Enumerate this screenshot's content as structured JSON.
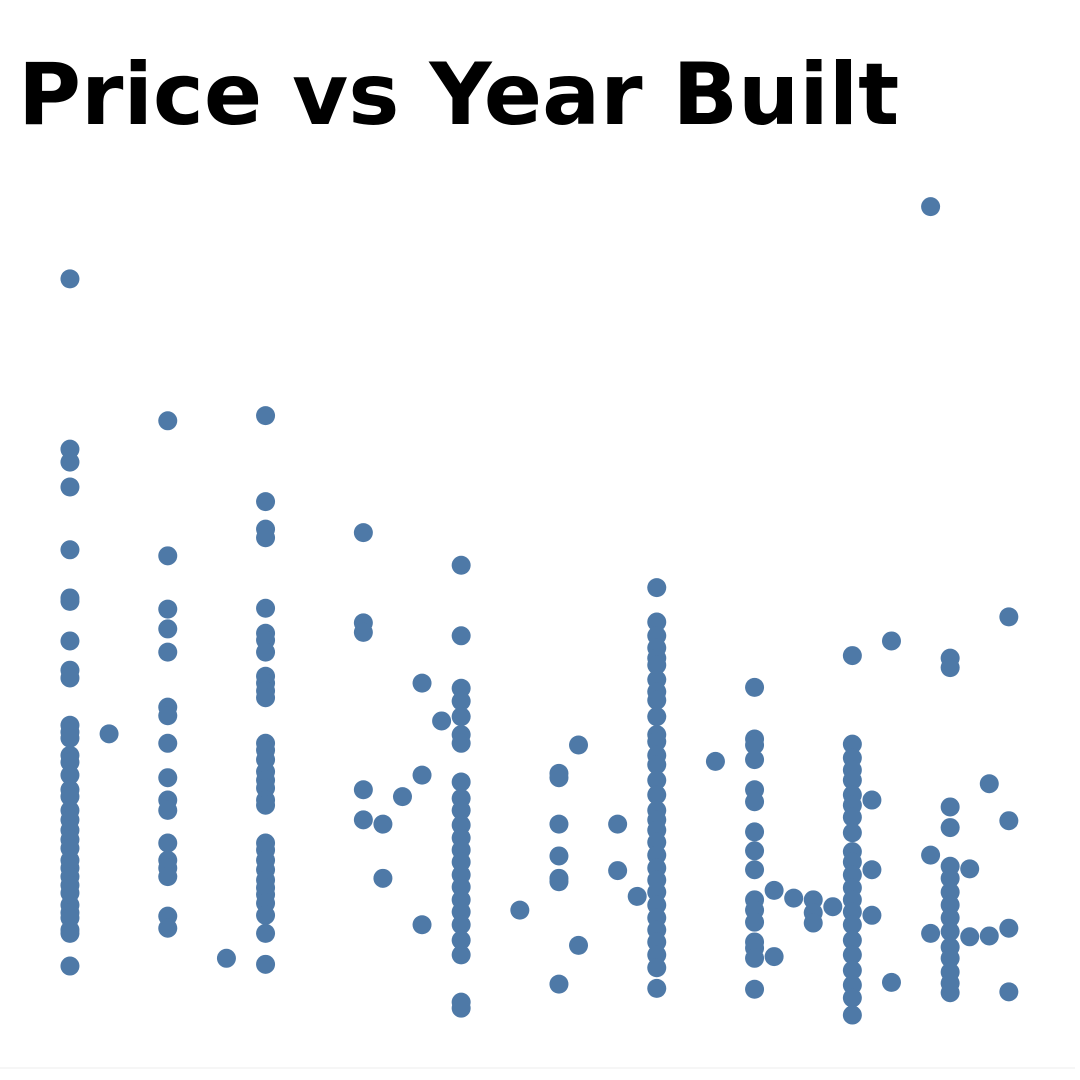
{
  "chart_data": {
    "type": "scatter",
    "title": "Price vs Year Built",
    "color": "#4e79a7",
    "xlim": [
      -3.5,
      51.5
    ],
    "ylim": [
      0,
      100
    ],
    "x": [
      0,
      0,
      0,
      0,
      0,
      0,
      0,
      0,
      0,
      0,
      0,
      0,
      0,
      0,
      0,
      0,
      0,
      0,
      0,
      0,
      0,
      0,
      0,
      0,
      0,
      0,
      0,
      0,
      0,
      0,
      0,
      0,
      0,
      0,
      2,
      5,
      5,
      5,
      5,
      5,
      5,
      5,
      5,
      5,
      5,
      5,
      5,
      5,
      5,
      5,
      5,
      5,
      8,
      10,
      10,
      10,
      10,
      10,
      10,
      10,
      10,
      10,
      10,
      10,
      10,
      10,
      10,
      10,
      10,
      10,
      10,
      10,
      10,
      10,
      10,
      10,
      10,
      10,
      10,
      10,
      10,
      10,
      10,
      10,
      15,
      15,
      15,
      15,
      15,
      16,
      16,
      17,
      18,
      18,
      18,
      19,
      20,
      20,
      20,
      20,
      20,
      20,
      20,
      20,
      20,
      20,
      20,
      20,
      20,
      20,
      20,
      20,
      20,
      20,
      20,
      20,
      20,
      20,
      20,
      23,
      25,
      25,
      25,
      25,
      25,
      25,
      25,
      26,
      26,
      28,
      28,
      29,
      30,
      30,
      30,
      30,
      30,
      30,
      30,
      30,
      30,
      30,
      30,
      30,
      30,
      30,
      30,
      30,
      30,
      30,
      30,
      30,
      30,
      30,
      30,
      30,
      30,
      30,
      30,
      30,
      30,
      30,
      30,
      33,
      35,
      35,
      35,
      35,
      35,
      35,
      35,
      35,
      35,
      35,
      35,
      35,
      35,
      35,
      35,
      35,
      36,
      36,
      37,
      38,
      38,
      38,
      39,
      40,
      40,
      40,
      40,
      40,
      40,
      40,
      40,
      40,
      40,
      40,
      40,
      40,
      40,
      40,
      40,
      40,
      40,
      40,
      40,
      40,
      40,
      41,
      41,
      41,
      42,
      42,
      44,
      44,
      44,
      45,
      45,
      45,
      45,
      45,
      45,
      45,
      45,
      45,
      45,
      45,
      45,
      45,
      45,
      45,
      46,
      46,
      47,
      47,
      48,
      48,
      48,
      48
    ],
    "y": [
      88.5,
      68.7,
      67.2,
      64.3,
      57.0,
      51.4,
      51.0,
      46.4,
      43.0,
      42.1,
      36.6,
      35.8,
      35.1,
      33.1,
      32.3,
      30.8,
      29.1,
      28.3,
      26.7,
      25.6,
      24.4,
      23.3,
      22.3,
      20.9,
      20.0,
      19.0,
      18.0,
      17.1,
      15.7,
      14.8,
      14.2,
      12.8,
      12.4,
      8.6,
      35.6,
      72.0,
      56.3,
      50.1,
      47.8,
      45.1,
      38.7,
      37.7,
      34.5,
      30.5,
      27.9,
      26.7,
      22.9,
      20.9,
      20.0,
      19.0,
      14.4,
      13.0,
      9.5,
      72.6,
      62.6,
      59.4,
      58.4,
      50.2,
      47.3,
      46.5,
      45.1,
      42.3,
      41.5,
      40.6,
      39.8,
      34.5,
      33.7,
      32.6,
      31.2,
      30.2,
      29.3,
      27.9,
      27.3,
      22.9,
      22.1,
      20.9,
      19.8,
      18.6,
      17.7,
      16.9,
      15.9,
      14.5,
      12.4,
      8.8,
      59.0,
      48.5,
      47.4,
      29.1,
      25.6,
      25.1,
      18.8,
      28.3,
      41.5,
      30.8,
      13.4,
      37.1,
      55.2,
      47.0,
      40.9,
      39.4,
      37.6,
      35.5,
      34.5,
      30.0,
      28.1,
      26.7,
      25.0,
      23.5,
      22.1,
      20.7,
      19.2,
      17.8,
      16.3,
      14.9,
      13.4,
      11.6,
      9.9,
      4.4,
      3.7,
      15.1,
      31.0,
      30.5,
      25.1,
      21.4,
      18.8,
      18.4,
      6.5,
      34.3,
      11.0,
      25.1,
      19.7,
      16.7,
      52.6,
      48.6,
      47.0,
      45.6,
      44.4,
      43.6,
      41.9,
      40.5,
      39.5,
      37.6,
      35.5,
      34.7,
      33.1,
      32.0,
      30.2,
      28.5,
      26.7,
      25.6,
      24.4,
      23.0,
      21.5,
      20.0,
      18.6,
      17.2,
      15.7,
      14.2,
      12.8,
      11.4,
      9.9,
      8.4,
      6.0,
      32.4,
      41.0,
      35.0,
      34.3,
      32.6,
      29.1,
      27.7,
      24.2,
      22.0,
      19.8,
      16.3,
      15.1,
      13.7,
      11.4,
      10.7,
      9.5,
      5.9,
      17.4,
      9.7,
      16.5,
      16.3,
      14.8,
      13.6,
      15.5,
      44.7,
      34.4,
      32.8,
      31.4,
      30.2,
      28.5,
      27.3,
      25.9,
      24.1,
      21.9,
      20.7,
      19.2,
      17.7,
      16.3,
      14.9,
      13.4,
      11.6,
      9.9,
      8.1,
      6.4,
      4.9,
      2.9,
      27.9,
      19.8,
      14.5,
      46.4,
      6.7,
      96.9,
      21.5,
      12.4,
      44.4,
      43.3,
      27.1,
      24.7,
      20.2,
      18.8,
      17.2,
      15.7,
      14.2,
      12.6,
      10.8,
      9.5,
      7.9,
      6.6,
      5.5,
      19.9,
      12.0,
      29.8,
      12.1,
      49.2,
      25.5,
      13.0,
      5.6
    ]
  }
}
